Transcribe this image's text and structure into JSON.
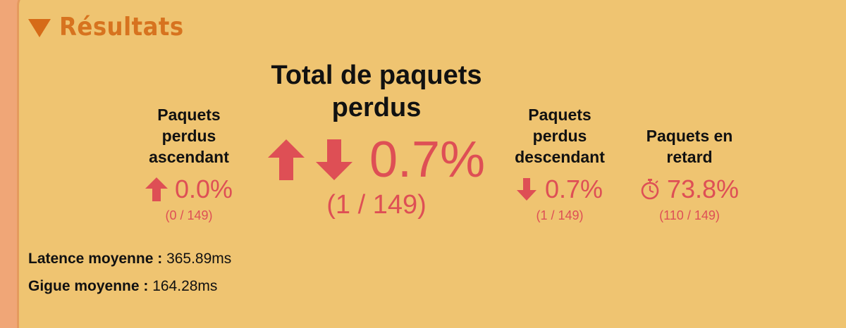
{
  "section": {
    "title": "Résultats"
  },
  "upload": {
    "label_lines": [
      "Paquets",
      "perdus",
      "ascendant"
    ],
    "value": "0.0%",
    "count": "(0 / 149)"
  },
  "total": {
    "label_lines": [
      "Total de paquets",
      "perdus"
    ],
    "value": "0.7%",
    "count": "(1 / 149)"
  },
  "download": {
    "label_lines": [
      "Paquets",
      "perdus",
      "descendant"
    ],
    "value": "0.7%",
    "count": "(1 / 149)"
  },
  "late": {
    "label_lines": [
      "Paquets en",
      "retard"
    ],
    "value": "73.8%",
    "count": "(110 / 149)"
  },
  "metrics": {
    "latency_label": "Latence moyenne :",
    "latency_value": "365.89ms",
    "jitter_label": "Gigue moyenne :",
    "jitter_value": "164.28ms"
  },
  "colors": {
    "accent": "#de4f55",
    "header": "#d7731f",
    "panel": "#efc471"
  },
  "icons": [
    "chevron-down-icon",
    "arrow-up-icon",
    "arrow-down-icon",
    "stopwatch-icon"
  ]
}
